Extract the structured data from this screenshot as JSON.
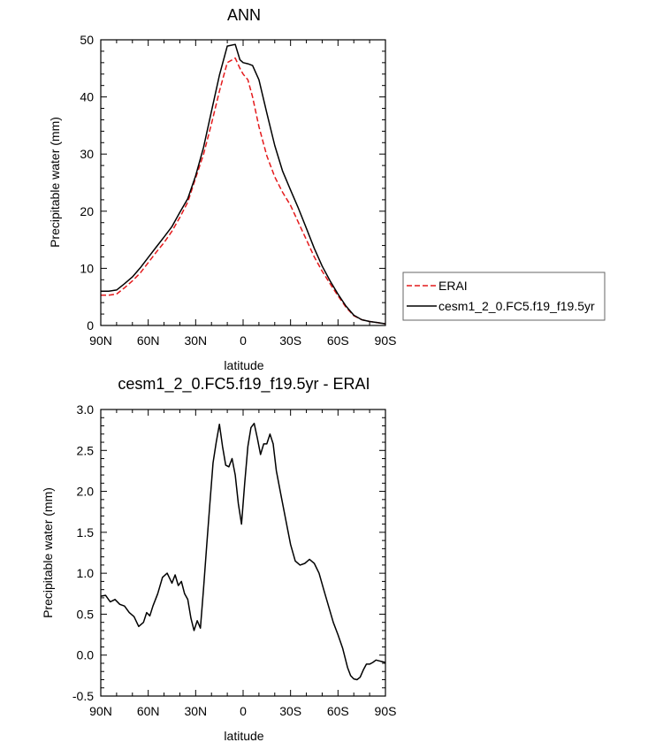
{
  "chart_data": [
    {
      "type": "line",
      "title": "ANN",
      "xlabel": "latitude",
      "ylabel": "Precipitable water (mm)",
      "xlim": [
        90,
        -90
      ],
      "ylim": [
        0,
        50
      ],
      "x_ticks": [
        90,
        60,
        30,
        0,
        -30,
        -60,
        -90
      ],
      "x_tick_labels": [
        "90N",
        "60N",
        "30N",
        "0",
        "30S",
        "60S",
        "90S"
      ],
      "y_ticks": [
        0,
        10,
        20,
        30,
        40,
        50
      ],
      "y_tick_labels": [
        "0",
        "10",
        "20",
        "30",
        "40",
        "50"
      ],
      "grid": false,
      "legend": "outside-right",
      "series": [
        {
          "name": "ERAI",
          "style": "dashed",
          "color": "#e41a1c",
          "x": [
            90,
            85,
            80,
            75,
            70,
            65,
            60,
            55,
            50,
            45,
            40,
            35,
            30,
            25,
            20,
            15,
            10,
            5,
            2,
            0,
            -3,
            -6,
            -10,
            -15,
            -20,
            -25,
            -30,
            -35,
            -40,
            -45,
            -50,
            -55,
            -60,
            -65,
            -70,
            -75,
            -80,
            -85,
            -90
          ],
          "y": [
            5.3,
            5.3,
            5.5,
            6.6,
            7.8,
            9.2,
            11.0,
            12.8,
            14.5,
            16.5,
            18.9,
            21.6,
            25.8,
            30.0,
            35.3,
            41.0,
            46.0,
            46.8,
            45.0,
            44.0,
            43.0,
            40.0,
            34.8,
            29.7,
            26.0,
            23.3,
            21.0,
            18.0,
            15.0,
            12.0,
            9.5,
            7.3,
            5.2,
            3.2,
            1.7,
            1.0,
            0.7,
            0.5,
            0.3
          ]
        },
        {
          "name": "cesm1_2_0.FC5.f19_f19.5yr",
          "style": "solid",
          "color": "#000000",
          "x": [
            90,
            85,
            80,
            75,
            70,
            65,
            60,
            55,
            50,
            45,
            40,
            35,
            30,
            25,
            20,
            15,
            10,
            5,
            2,
            0,
            -3,
            -6,
            -10,
            -15,
            -20,
            -25,
            -30,
            -35,
            -40,
            -45,
            -50,
            -55,
            -60,
            -65,
            -70,
            -75,
            -80,
            -85,
            -90
          ],
          "y": [
            6.0,
            6.0,
            6.2,
            7.3,
            8.5,
            10.1,
            11.9,
            13.7,
            15.5,
            17.3,
            19.8,
            22.2,
            26.2,
            31.2,
            37.5,
            43.8,
            48.9,
            49.2,
            46.5,
            46.0,
            45.8,
            45.5,
            43.0,
            37.2,
            31.5,
            27.0,
            23.7,
            20.5,
            17.0,
            13.5,
            10.4,
            7.8,
            5.5,
            3.4,
            1.8,
            1.0,
            0.7,
            0.5,
            0.3
          ]
        }
      ]
    },
    {
      "type": "line",
      "title": "cesm1_2_0.FC5.f19_f19.5yr - ERAI",
      "xlabel": "latitude",
      "ylabel": "Precipitable water (mm)",
      "xlim": [
        90,
        -90
      ],
      "ylim": [
        -0.5,
        3.0
      ],
      "x_ticks": [
        90,
        60,
        30,
        0,
        -30,
        -60,
        -90
      ],
      "x_tick_labels": [
        "90N",
        "60N",
        "30N",
        "0",
        "30S",
        "60S",
        "90S"
      ],
      "y_ticks": [
        -0.5,
        0.0,
        0.5,
        1.0,
        1.5,
        2.0,
        2.5,
        3.0
      ],
      "y_tick_labels": [
        "-0.5",
        "0.0",
        "0.5",
        "1.0",
        "1.5",
        "2.0",
        "2.5",
        "3.0"
      ],
      "grid": false,
      "series": [
        {
          "style": "solid",
          "color": "#000000",
          "x": [
            90,
            87,
            84,
            81,
            78,
            75,
            72,
            69,
            66,
            63,
            61,
            59,
            57,
            54,
            51,
            48,
            45,
            43,
            41,
            39,
            37,
            35,
            33,
            31,
            29,
            27,
            25,
            23,
            21,
            19,
            17,
            15,
            13,
            11,
            9,
            7,
            5,
            3,
            1,
            -1,
            -3,
            -5,
            -7,
            -9,
            -11,
            -13,
            -15,
            -17,
            -19,
            -21,
            -24,
            -27,
            -30,
            -33,
            -36,
            -39,
            -42,
            -45,
            -48,
            -51,
            -54,
            -57,
            -60,
            -63,
            -66,
            -68,
            -70,
            -72,
            -74,
            -76,
            -78,
            -80,
            -82,
            -84,
            -86,
            -88,
            -90
          ],
          "y": [
            0.72,
            0.73,
            0.65,
            0.68,
            0.62,
            0.6,
            0.52,
            0.47,
            0.35,
            0.4,
            0.52,
            0.48,
            0.6,
            0.75,
            0.95,
            1.0,
            0.88,
            0.98,
            0.85,
            0.9,
            0.75,
            0.68,
            0.45,
            0.3,
            0.42,
            0.33,
            0.82,
            1.35,
            1.85,
            2.35,
            2.6,
            2.82,
            2.55,
            2.32,
            2.3,
            2.4,
            2.2,
            1.85,
            1.6,
            2.1,
            2.55,
            2.78,
            2.83,
            2.65,
            2.45,
            2.58,
            2.58,
            2.7,
            2.58,
            2.25,
            1.95,
            1.65,
            1.35,
            1.15,
            1.1,
            1.12,
            1.17,
            1.12,
            1.0,
            0.8,
            0.6,
            0.4,
            0.25,
            0.08,
            -0.15,
            -0.25,
            -0.29,
            -0.3,
            -0.27,
            -0.18,
            -0.11,
            -0.11,
            -0.09,
            -0.06,
            -0.07,
            -0.08,
            -0.09
          ]
        }
      ]
    }
  ]
}
